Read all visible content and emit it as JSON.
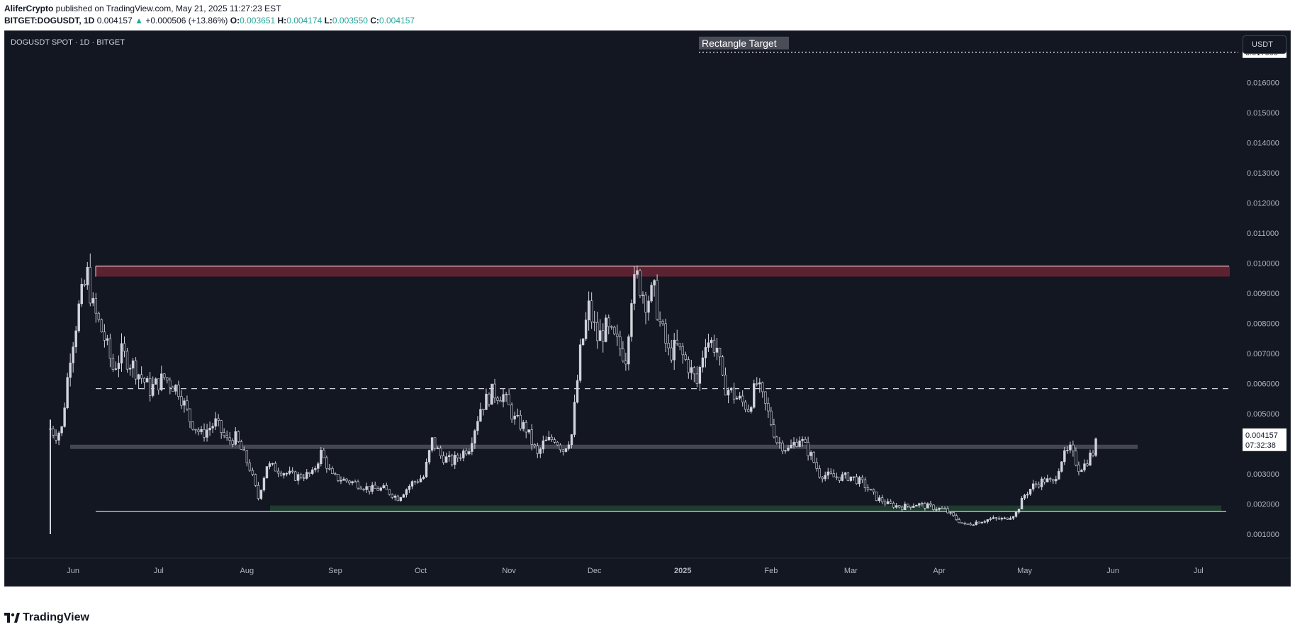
{
  "header": {
    "author": "AliferCrypto",
    "published_text": " published on TradingView.com, May 21, 2025 11:27:23 EST",
    "symbol": "BITGET:DOGUSDT, 1D",
    "last": "0.004157",
    "change": "+0.000506 (+13.86%)",
    "o_label": "O:",
    "o_value": "0.003651",
    "h_label": "H:",
    "h_value": "0.004174",
    "l_label": "L:",
    "l_value": "0.003550",
    "c_label": "C:",
    "c_value": "0.004157"
  },
  "chart": {
    "symbol_label": "DOGUSDT SPOT · 1D · BITGET",
    "currency": "USDT",
    "annotation": "Rectangle Target",
    "last_price_label": "0.004157",
    "countdown_label": "07:32:38",
    "colors": {
      "background": "#131722",
      "candle": "#d1d4dc",
      "resistance_zone": "#5d2231",
      "resistance_edge": "#f4c7cf",
      "support_zone": "#1e3b2e",
      "mid_line": "#4a4d57",
      "axis_text": "#b2b5be"
    }
  },
  "chart_data": {
    "type": "candlestick",
    "y_axis": {
      "ticks": [
        "0.001000",
        "0.002000",
        "0.003000",
        "0.004000",
        "0.005000",
        "0.006000",
        "0.007000",
        "0.008000",
        "0.009000",
        "0.010000",
        "0.011000",
        "0.012000",
        "0.013000",
        "0.014000",
        "0.015000",
        "0.016000",
        "0.017000"
      ],
      "range": [
        0.0002,
        0.0177
      ]
    },
    "x_axis": {
      "labels": [
        "Jun",
        "Jul",
        "Aug",
        "Sep",
        "Oct",
        "Nov",
        "Dec",
        "2025",
        "Feb",
        "Mar",
        "Apr",
        "May",
        "Jun",
        "Jul"
      ],
      "bold": [
        "2025"
      ],
      "range": [
        "2024-05-23",
        "2025-07-15"
      ]
    },
    "levels": {
      "rectangle_target": 0.017,
      "resistance_zone": [
        0.00955,
        0.0099
      ],
      "dashed_mid": 0.00583,
      "gray_line": 0.0039,
      "support_zone": [
        0.00175,
        0.00195
      ],
      "support_line": 0.00175
    },
    "price_anchors": [
      [
        "2024-05-24",
        0.0045
      ],
      [
        "2024-05-26",
        0.0043
      ],
      [
        "2024-05-28",
        0.0045
      ],
      [
        "2024-05-31",
        0.007
      ],
      [
        "2024-06-03",
        0.0085
      ],
      [
        "2024-06-06",
        0.0096
      ],
      [
        "2024-06-08",
        0.0085
      ],
      [
        "2024-06-12",
        0.0075
      ],
      [
        "2024-06-15",
        0.0065
      ],
      [
        "2024-06-18",
        0.007
      ],
      [
        "2024-06-22",
        0.0066
      ],
      [
        "2024-06-28",
        0.0058
      ],
      [
        "2024-07-03",
        0.0062
      ],
      [
        "2024-07-08",
        0.0058
      ],
      [
        "2024-07-12",
        0.0048
      ],
      [
        "2024-07-16",
        0.0043
      ],
      [
        "2024-07-21",
        0.0047
      ],
      [
        "2024-07-25",
        0.0041
      ],
      [
        "2024-07-28",
        0.0042
      ],
      [
        "2024-08-02",
        0.0032
      ],
      [
        "2024-08-05",
        0.0022
      ],
      [
        "2024-08-08",
        0.0033
      ],
      [
        "2024-08-13",
        0.0031
      ],
      [
        "2024-08-18",
        0.0029
      ],
      [
        "2024-08-24",
        0.003
      ],
      [
        "2024-08-27",
        0.0037
      ],
      [
        "2024-08-31",
        0.0029
      ],
      [
        "2024-09-08",
        0.0027
      ],
      [
        "2024-09-13",
        0.0025
      ],
      [
        "2024-09-18",
        0.0025
      ],
      [
        "2024-09-23",
        0.0022
      ],
      [
        "2024-09-28",
        0.0027
      ],
      [
        "2024-10-02",
        0.0029
      ],
      [
        "2024-10-05",
        0.0041
      ],
      [
        "2024-10-08",
        0.0036
      ],
      [
        "2024-10-12",
        0.0034
      ],
      [
        "2024-10-18",
        0.0039
      ],
      [
        "2024-10-22",
        0.0052
      ],
      [
        "2024-10-26",
        0.0057
      ],
      [
        "2024-10-30",
        0.0056
      ],
      [
        "2024-11-03",
        0.0048
      ],
      [
        "2024-11-07",
        0.0045
      ],
      [
        "2024-11-11",
        0.0036
      ],
      [
        "2024-11-13",
        0.004
      ],
      [
        "2024-11-17",
        0.0042
      ],
      [
        "2024-11-20",
        0.0038
      ],
      [
        "2024-11-23",
        0.0043
      ],
      [
        "2024-11-26",
        0.007
      ],
      [
        "2024-11-29",
        0.0085
      ],
      [
        "2024-12-02",
        0.0075
      ],
      [
        "2024-12-05",
        0.0078
      ],
      [
        "2024-12-09",
        0.0073
      ],
      [
        "2024-12-12",
        0.0069
      ],
      [
        "2024-12-14",
        0.009
      ],
      [
        "2024-12-16",
        0.0095
      ],
      [
        "2024-12-19",
        0.0088
      ],
      [
        "2024-12-22",
        0.009
      ],
      [
        "2024-12-24",
        0.008
      ],
      [
        "2024-12-27",
        0.007
      ],
      [
        "2024-12-30",
        0.0072
      ],
      [
        "2025-01-03",
        0.0066
      ],
      [
        "2025-01-06",
        0.006
      ],
      [
        "2025-01-09",
        0.0075
      ],
      [
        "2025-01-13",
        0.0072
      ],
      [
        "2025-01-15",
        0.006
      ],
      [
        "2025-01-19",
        0.0056
      ],
      [
        "2025-01-24",
        0.0052
      ],
      [
        "2025-01-27",
        0.006
      ],
      [
        "2025-01-31",
        0.005
      ],
      [
        "2025-02-03",
        0.0041
      ],
      [
        "2025-02-07",
        0.0038
      ],
      [
        "2025-02-11",
        0.0042
      ],
      [
        "2025-02-15",
        0.0036
      ],
      [
        "2025-02-18",
        0.003
      ],
      [
        "2025-02-23",
        0.0029
      ],
      [
        "2025-03-01",
        0.0029
      ],
      [
        "2025-03-05",
        0.0027
      ],
      [
        "2025-03-10",
        0.0022
      ],
      [
        "2025-03-14",
        0.002
      ],
      [
        "2025-03-19",
        0.0019
      ],
      [
        "2025-03-24",
        0.002
      ],
      [
        "2025-03-29",
        0.0019
      ],
      [
        "2025-04-03",
        0.0018
      ],
      [
        "2025-04-07",
        0.0015
      ],
      [
        "2025-04-10",
        0.0013
      ],
      [
        "2025-04-14",
        0.0014
      ],
      [
        "2025-04-19",
        0.0015
      ],
      [
        "2025-04-24",
        0.0015
      ],
      [
        "2025-04-28",
        0.0017
      ],
      [
        "2025-05-01",
        0.0023
      ],
      [
        "2025-05-04",
        0.0026
      ],
      [
        "2025-05-08",
        0.0028
      ],
      [
        "2025-05-11",
        0.0027
      ],
      [
        "2025-05-14",
        0.0035
      ],
      [
        "2025-05-17",
        0.0038
      ],
      [
        "2025-05-20",
        0.0032
      ],
      [
        "2025-05-22",
        0.0033
      ],
      [
        "2025-05-24",
        0.0036
      ],
      [
        "2025-05-25",
        0.0037
      ],
      [
        "2025-05-26",
        0.004
      ]
    ]
  },
  "footer": {
    "brand": "TradingView"
  }
}
